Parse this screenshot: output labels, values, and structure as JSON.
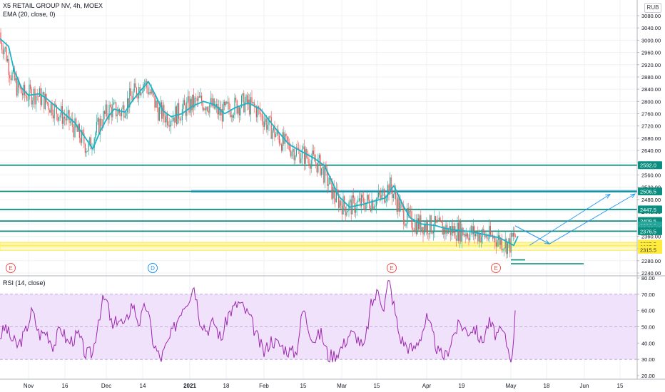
{
  "header": {
    "title": "X5 RETAIL GROUP NV, 4h, MOEX",
    "ema_label": "EMA (20, close, 0)",
    "rsi_label": "RSI (14, close)",
    "currency": "RUB"
  },
  "chart_data": [
    {
      "type": "candlestick",
      "title": "X5 RETAIL GROUP NV, 4h, MOEX",
      "ylim": [
        2235,
        3110
      ],
      "price_ticks": [
        3080.0,
        3040.0,
        3000.0,
        2960.0,
        2920.0,
        2880.0,
        2840.0,
        2800.0,
        2760.0,
        2720.0,
        2680.0,
        2640.0,
        2600.0,
        2560.0,
        2520.0,
        2480.0,
        2440.0,
        2400.0,
        2360.0,
        2320.0,
        2280.0,
        2240.0
      ],
      "time_labels": [
        "Nov",
        "16",
        "Dec",
        "14",
        "2021",
        "18",
        "Feb",
        "15",
        "Mar",
        "15",
        "Apr",
        "19",
        "May",
        "18",
        "Jun",
        "15"
      ],
      "time_label_x": [
        40,
        91,
        149,
        200,
        266,
        317,
        370,
        425,
        479,
        528,
        598,
        647,
        716,
        766,
        819,
        869
      ],
      "ema_anchors": [
        [
          0,
          3005
        ],
        [
          12,
          2980
        ],
        [
          20,
          2900
        ],
        [
          30,
          2845
        ],
        [
          40,
          2820
        ],
        [
          55,
          2825
        ],
        [
          65,
          2810
        ],
        [
          85,
          2770
        ],
        [
          105,
          2730
        ],
        [
          120,
          2680
        ],
        [
          130,
          2645
        ],
        [
          140,
          2700
        ],
        [
          150,
          2745
        ],
        [
          160,
          2775
        ],
        [
          175,
          2765
        ],
        [
          185,
          2800
        ],
        [
          195,
          2830
        ],
        [
          208,
          2865
        ],
        [
          218,
          2820
        ],
        [
          228,
          2770
        ],
        [
          240,
          2750
        ],
        [
          255,
          2760
        ],
        [
          270,
          2785
        ],
        [
          285,
          2800
        ],
        [
          300,
          2790
        ],
        [
          315,
          2760
        ],
        [
          330,
          2780
        ],
        [
          348,
          2795
        ],
        [
          365,
          2775
        ],
        [
          385,
          2715
        ],
        [
          405,
          2660
        ],
        [
          420,
          2640
        ],
        [
          440,
          2615
        ],
        [
          455,
          2590
        ],
        [
          465,
          2540
        ],
        [
          475,
          2490
        ],
        [
          490,
          2455
        ],
        [
          510,
          2465
        ],
        [
          525,
          2475
        ],
        [
          540,
          2485
        ],
        [
          552,
          2525
        ],
        [
          565,
          2460
        ],
        [
          575,
          2420
        ],
        [
          590,
          2400
        ],
        [
          610,
          2395
        ],
        [
          625,
          2385
        ],
        [
          640,
          2380
        ],
        [
          660,
          2375
        ],
        [
          680,
          2365
        ],
        [
          700,
          2355
        ],
        [
          712,
          2340
        ],
        [
          720,
          2330
        ],
        [
          726,
          2360
        ]
      ],
      "rsi_anchors": [
        [
          0,
          44
        ],
        [
          8,
          50
        ],
        [
          15,
          43
        ],
        [
          25,
          38
        ],
        [
          35,
          46
        ],
        [
          45,
          60
        ],
        [
          55,
          45
        ],
        [
          65,
          47
        ],
        [
          75,
          38
        ],
        [
          85,
          50
        ],
        [
          95,
          40
        ],
        [
          110,
          45
        ],
        [
          120,
          33
        ],
        [
          130,
          34
        ],
        [
          138,
          55
        ],
        [
          145,
          67
        ],
        [
          150,
          65
        ],
        [
          158,
          48
        ],
        [
          165,
          56
        ],
        [
          175,
          50
        ],
        [
          185,
          65
        ],
        [
          195,
          52
        ],
        [
          205,
          64
        ],
        [
          215,
          40
        ],
        [
          225,
          30
        ],
        [
          235,
          40
        ],
        [
          245,
          50
        ],
        [
          255,
          62
        ],
        [
          265,
          68
        ],
        [
          272,
          76
        ],
        [
          280,
          55
        ],
        [
          290,
          48
        ],
        [
          300,
          53
        ],
        [
          310,
          42
        ],
        [
          320,
          58
        ],
        [
          335,
          65
        ],
        [
          350,
          56
        ],
        [
          360,
          44
        ],
        [
          370,
          34
        ],
        [
          380,
          42
        ],
        [
          395,
          38
        ],
        [
          405,
          35
        ],
        [
          415,
          34
        ],
        [
          425,
          62
        ],
        [
          432,
          50
        ],
        [
          440,
          42
        ],
        [
          450,
          46
        ],
        [
          460,
          32
        ],
        [
          470,
          33
        ],
        [
          480,
          38
        ],
        [
          490,
          46
        ],
        [
          500,
          44
        ],
        [
          510,
          36
        ],
        [
          520,
          63
        ],
        [
          530,
          72
        ],
        [
          538,
          62
        ],
        [
          545,
          79
        ],
        [
          552,
          63
        ],
        [
          560,
          44
        ],
        [
          570,
          38
        ],
        [
          580,
          36
        ],
        [
          590,
          45
        ],
        [
          598,
          55
        ],
        [
          605,
          47
        ],
        [
          615,
          33
        ],
        [
          625,
          32
        ],
        [
          635,
          45
        ],
        [
          645,
          52
        ],
        [
          655,
          47
        ],
        [
          665,
          50
        ],
        [
          675,
          40
        ],
        [
          685,
          53
        ],
        [
          695,
          45
        ],
        [
          705,
          47
        ],
        [
          712,
          37
        ],
        [
          718,
          30
        ],
        [
          722,
          62
        ]
      ],
      "price_key_levels": [
        2592.0,
        2506.5,
        2447.5,
        2409.5,
        2376.5,
        2315.5
      ],
      "projection_path": [
        [
          722,
          2394
        ],
        [
          770,
          2335
        ],
        [
          890,
          2498
        ]
      ],
      "projection_path_2": [
        [
          722,
          2394
        ],
        [
          740,
          2368
        ],
        [
          770,
          2335
        ],
        [
          780,
          2360
        ]
      ],
      "event_markers": [
        {
          "label": "E",
          "x": 15,
          "color": "#ef5350"
        },
        {
          "label": "D",
          "x": 214,
          "color": "#2196f3"
        },
        {
          "label": "E",
          "x": 549,
          "color": "#ef5350"
        },
        {
          "label": "E",
          "x": 695,
          "color": "#ef5350"
        }
      ],
      "right_labels": [
        {
          "text": "2592.0",
          "price": 2592,
          "bg": "#0b8d7f",
          "fg": "#ffffff"
        },
        {
          "text": "2506.5",
          "price": 2506.5,
          "bg": "#0b8d7f",
          "fg": "#ffffff"
        },
        {
          "text": "2447.5",
          "price": 2447.5,
          "bg": "#0b8d7f",
          "fg": "#ffffff"
        },
        {
          "text": "2409.5",
          "price": 2409.5,
          "bg": "#0b8d7f",
          "fg": "#ffffff"
        },
        {
          "text": "2390.0",
          "price": 2395,
          "bg": "#26a69a",
          "fg": "#ffffff"
        },
        {
          "text": "02:28:42",
          "price": 2385,
          "bg": "#26a69a",
          "fg": "#ffffff"
        },
        {
          "text": "2376.5",
          "price": 2376.5,
          "bg": "#0b8d7f",
          "fg": "#ffffff"
        },
        {
          "text": "2335.5",
          "price": 2335.5,
          "bg": "#ffeb3b",
          "fg": "#333333"
        },
        {
          "text": "2325.5",
          "price": 2325.5,
          "bg": "#ffeb3b",
          "fg": "#333333"
        },
        {
          "text": "2315.5",
          "price": 2315.5,
          "bg": "#ffeb3b",
          "fg": "#333333"
        }
      ]
    },
    {
      "type": "line",
      "title": "RSI (14, close)",
      "ylim": [
        15,
        82
      ],
      "ticks": [
        80.0,
        70.0,
        60.0,
        50.0,
        40.0,
        30.0,
        20.0
      ],
      "band": [
        30,
        70
      ]
    }
  ],
  "colors": {
    "teal_line": "#0b8d7f",
    "blue_band": "#2196f3",
    "yellow_band": "#ffeb3b",
    "ema": "#1ab3c7",
    "rsi": "#9c27b0",
    "rsi_band_fill": "#f1e2fb",
    "candle_up": "#26a69a",
    "candle_down": "#ef5350",
    "projection": "#2196f3"
  }
}
